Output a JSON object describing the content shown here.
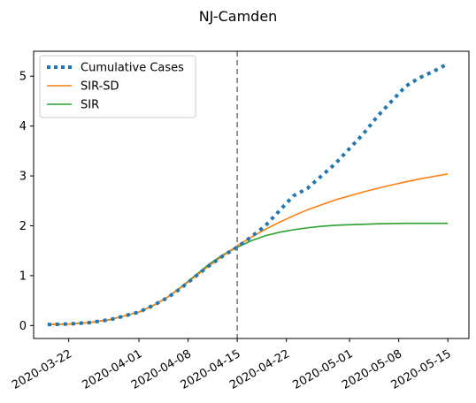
{
  "chart_data": {
    "type": "line",
    "title": "NJ-Camden",
    "xlabel": "",
    "ylabel": "",
    "x_range": [
      "2020-03-17",
      "2020-05-18"
    ],
    "ylim": [
      -0.26,
      5.5
    ],
    "x_ticks": [
      "2020-03-22",
      "2020-04-01",
      "2020-04-08",
      "2020-04-15",
      "2020-04-22",
      "2020-05-01",
      "2020-05-08",
      "2020-05-15"
    ],
    "y_ticks": [
      0,
      1,
      2,
      3,
      4,
      5
    ],
    "vline": {
      "date": "2020-04-15",
      "style": "dashed",
      "color": "#7f7f7f"
    },
    "grid": false,
    "legend_position": "upper left",
    "series": [
      {
        "name": "Cumulative Cases",
        "style": "dotted",
        "color": "#1f77b4",
        "points": [
          [
            "2020-03-19",
            0.02
          ],
          [
            "2020-03-22",
            0.03
          ],
          [
            "2020-03-25",
            0.06
          ],
          [
            "2020-03-28",
            0.12
          ],
          [
            "2020-04-01",
            0.27
          ],
          [
            "2020-04-03",
            0.4
          ],
          [
            "2020-04-05",
            0.55
          ],
          [
            "2020-04-07",
            0.75
          ],
          [
            "2020-04-09",
            0.98
          ],
          [
            "2020-04-11",
            1.2
          ],
          [
            "2020-04-13",
            1.4
          ],
          [
            "2020-04-15",
            1.57
          ],
          [
            "2020-04-17",
            1.78
          ],
          [
            "2020-04-19",
            2.0
          ],
          [
            "2020-04-21",
            2.3
          ],
          [
            "2020-04-23",
            2.6
          ],
          [
            "2020-04-25",
            2.75
          ],
          [
            "2020-04-27",
            3.0
          ],
          [
            "2020-04-29",
            3.25
          ],
          [
            "2020-05-01",
            3.55
          ],
          [
            "2020-05-03",
            3.85
          ],
          [
            "2020-05-05",
            4.2
          ],
          [
            "2020-05-07",
            4.5
          ],
          [
            "2020-05-09",
            4.8
          ],
          [
            "2020-05-11",
            4.97
          ],
          [
            "2020-05-13",
            5.1
          ],
          [
            "2020-05-15",
            5.25
          ]
        ]
      },
      {
        "name": "SIR-SD",
        "style": "solid",
        "color": "#ff7f0e",
        "points": [
          [
            "2020-03-19",
            0.02
          ],
          [
            "2020-03-22",
            0.03
          ],
          [
            "2020-03-25",
            0.06
          ],
          [
            "2020-03-28",
            0.12
          ],
          [
            "2020-04-01",
            0.27
          ],
          [
            "2020-04-03",
            0.4
          ],
          [
            "2020-04-05",
            0.56
          ],
          [
            "2020-04-07",
            0.76
          ],
          [
            "2020-04-09",
            0.98
          ],
          [
            "2020-04-11",
            1.2
          ],
          [
            "2020-04-13",
            1.4
          ],
          [
            "2020-04-15",
            1.6
          ],
          [
            "2020-04-17",
            1.77
          ],
          [
            "2020-04-19",
            1.93
          ],
          [
            "2020-04-21",
            2.07
          ],
          [
            "2020-04-23",
            2.2
          ],
          [
            "2020-04-25",
            2.32
          ],
          [
            "2020-04-27",
            2.42
          ],
          [
            "2020-04-29",
            2.52
          ],
          [
            "2020-05-01",
            2.6
          ],
          [
            "2020-05-03",
            2.68
          ],
          [
            "2020-05-05",
            2.75
          ],
          [
            "2020-05-07",
            2.82
          ],
          [
            "2020-05-09",
            2.88
          ],
          [
            "2020-05-11",
            2.94
          ],
          [
            "2020-05-13",
            2.99
          ],
          [
            "2020-05-15",
            3.04
          ]
        ]
      },
      {
        "name": "SIR",
        "style": "solid",
        "color": "#2ca02c",
        "points": [
          [
            "2020-03-19",
            0.02
          ],
          [
            "2020-03-22",
            0.03
          ],
          [
            "2020-03-25",
            0.06
          ],
          [
            "2020-03-28",
            0.12
          ],
          [
            "2020-04-01",
            0.27
          ],
          [
            "2020-04-03",
            0.4
          ],
          [
            "2020-04-05",
            0.56
          ],
          [
            "2020-04-07",
            0.77
          ],
          [
            "2020-04-09",
            1.0
          ],
          [
            "2020-04-11",
            1.23
          ],
          [
            "2020-04-13",
            1.42
          ],
          [
            "2020-04-15",
            1.57
          ],
          [
            "2020-04-17",
            1.7
          ],
          [
            "2020-04-19",
            1.8
          ],
          [
            "2020-04-21",
            1.87
          ],
          [
            "2020-04-23",
            1.92
          ],
          [
            "2020-04-25",
            1.96
          ],
          [
            "2020-04-27",
            1.99
          ],
          [
            "2020-04-29",
            2.01
          ],
          [
            "2020-05-01",
            2.02
          ],
          [
            "2020-05-03",
            2.03
          ],
          [
            "2020-05-05",
            2.04
          ],
          [
            "2020-05-07",
            2.045
          ],
          [
            "2020-05-09",
            2.05
          ],
          [
            "2020-05-11",
            2.05
          ],
          [
            "2020-05-13",
            2.05
          ],
          [
            "2020-05-15",
            2.05
          ]
        ]
      }
    ]
  }
}
